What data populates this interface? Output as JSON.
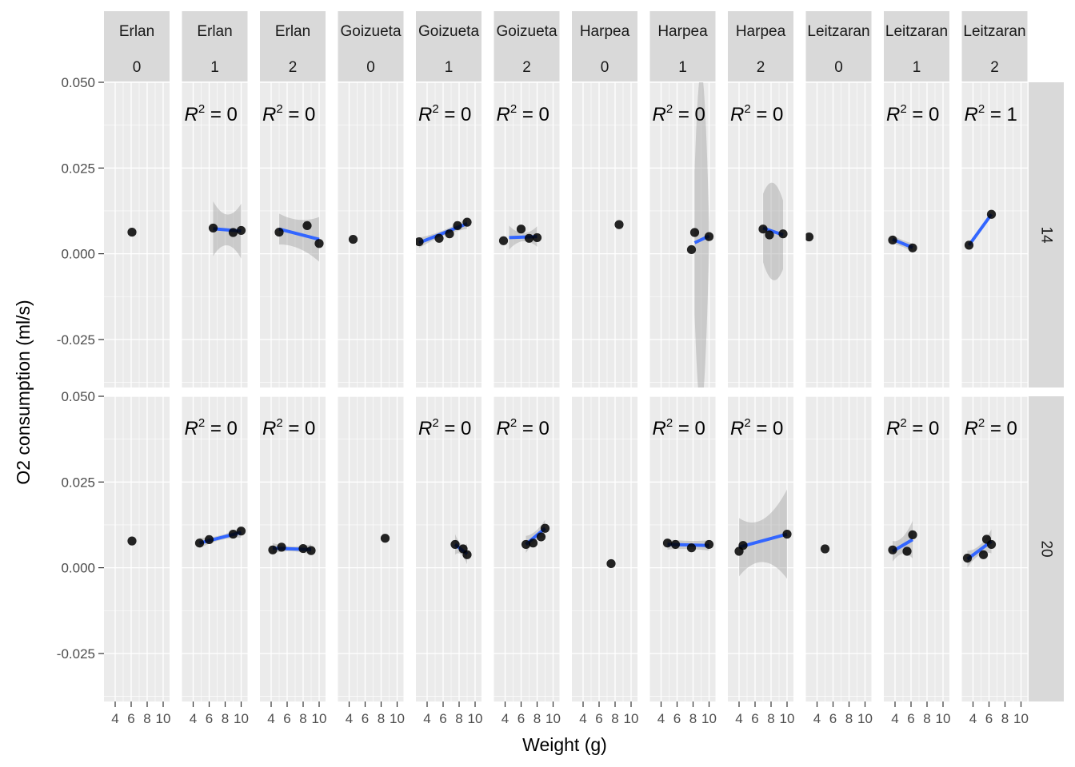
{
  "chart_data": {
    "type": "scatter",
    "xlabel": "Weight (g)",
    "ylabel": "O2 consumption (ml/s)",
    "x_ticks": [
      4,
      6,
      8,
      10
    ],
    "x_tick_labels": [
      "4",
      "6",
      "8",
      "10"
    ],
    "xlim": [
      2.6,
      10.8
    ],
    "y_ticks": [
      -0.025,
      0.0,
      0.025,
      0.05
    ],
    "y_tick_labels": [
      "-0.025",
      "0.000",
      "0.025",
      "0.050"
    ],
    "ylim": [
      -0.039,
      0.05
    ],
    "column_facets": [
      {
        "site": "Erlan",
        "level": "0"
      },
      {
        "site": "Erlan",
        "level": "1"
      },
      {
        "site": "Erlan",
        "level": "2"
      },
      {
        "site": "Goizueta",
        "level": "0"
      },
      {
        "site": "Goizueta",
        "level": "1"
      },
      {
        "site": "Goizueta",
        "level": "2"
      },
      {
        "site": "Harpea",
        "level": "0"
      },
      {
        "site": "Harpea",
        "level": "1"
      },
      {
        "site": "Harpea",
        "level": "2"
      },
      {
        "site": "Leitzaran",
        "level": "0"
      },
      {
        "site": "Leitzaran",
        "level": "1"
      },
      {
        "site": "Leitzaran",
        "level": "2"
      }
    ],
    "row_facets": [
      "14",
      "20"
    ],
    "colors": {
      "points": "#000000",
      "fit_line": "#3366FF",
      "ribbon": "#999999",
      "panel": "#EBEBEB",
      "strip": "#D9D9D9",
      "grid": "#FFFFFF"
    },
    "panels": [
      {
        "row": 0,
        "col": 0,
        "r2": "",
        "points": [
          [
            6.1,
            0.0063
          ]
        ],
        "fit": null
      },
      {
        "row": 0,
        "col": 1,
        "r2": "R² = 0",
        "points": [
          [
            6.5,
            0.0075
          ],
          [
            9.0,
            0.0062
          ],
          [
            10.0,
            0.0068
          ]
        ],
        "fit": {
          "x": [
            6.5,
            10.0
          ],
          "y": [
            0.0073,
            0.0066
          ],
          "se": [
            [
              6.5,
              0.008
            ],
            [
              8.3,
              0.0045
            ],
            [
              10.0,
              0.008
            ]
          ]
        }
      },
      {
        "row": 0,
        "col": 2,
        "r2": "R² = 0",
        "points": [
          [
            5.0,
            0.0063
          ],
          [
            8.5,
            0.0082
          ],
          [
            10.0,
            0.003
          ]
        ],
        "fit": {
          "x": [
            5.0,
            10.0
          ],
          "y": [
            0.0072,
            0.0042
          ],
          "se": [
            [
              5.0,
              0.0045
            ],
            [
              7.5,
              0.0042
            ],
            [
              10.0,
              0.0065
            ]
          ]
        }
      },
      {
        "row": 0,
        "col": 3,
        "r2": "",
        "points": [
          [
            4.5,
            0.0042
          ]
        ],
        "fit": null
      },
      {
        "row": 0,
        "col": 4,
        "r2": "R² = 0",
        "points": [
          [
            3.0,
            0.0035
          ],
          [
            5.5,
            0.0045
          ],
          [
            6.8,
            0.0058
          ],
          [
            7.8,
            0.0082
          ],
          [
            9.0,
            0.0092
          ]
        ],
        "fit": {
          "x": [
            3.0,
            9.0
          ],
          "y": [
            0.0032,
            0.0088
          ],
          "se": [
            [
              3.0,
              0.0015
            ],
            [
              6.0,
              0.0008
            ],
            [
              9.0,
              0.0015
            ]
          ]
        }
      },
      {
        "row": 0,
        "col": 5,
        "r2": "R² = 0",
        "points": [
          [
            3.8,
            0.0038
          ],
          [
            6.0,
            0.0072
          ],
          [
            7.0,
            0.0045
          ],
          [
            8.0,
            0.0047
          ]
        ],
        "fit": {
          "x": [
            4.5,
            8.0
          ],
          "y": [
            0.0047,
            0.005
          ],
          "se": [
            [
              4.5,
              0.0035
            ],
            [
              6.2,
              0.0012
            ],
            [
              8.0,
              0.003
            ]
          ]
        }
      },
      {
        "row": 0,
        "col": 6,
        "r2": "",
        "points": [
          [
            8.5,
            0.0085
          ]
        ],
        "fit": null
      },
      {
        "row": 0,
        "col": 7,
        "r2": "R² = 0",
        "points": [
          [
            7.8,
            0.0012
          ],
          [
            8.2,
            0.0062
          ],
          [
            10.0,
            0.005
          ]
        ],
        "fit": {
          "x": [
            8.2,
            10.0
          ],
          "y": [
            0.0032,
            0.0052
          ],
          "se": [
            [
              8.2,
              0.021
            ],
            [
              9.2,
              0.047
            ],
            [
              10.0,
              0.004
            ]
          ]
        }
      },
      {
        "row": 0,
        "col": 8,
        "r2": "R² = 0",
        "points": [
          [
            7.0,
            0.0072
          ],
          [
            7.8,
            0.0055
          ],
          [
            9.5,
            0.0058
          ]
        ],
        "fit": {
          "x": [
            7.0,
            9.5
          ],
          "y": [
            0.0075,
            0.0055
          ],
          "se": [
            [
              7.0,
              0.01
            ],
            [
              8.0,
              0.014
            ],
            [
              9.5,
              0.01
            ]
          ]
        }
      },
      {
        "row": 0,
        "col": 9,
        "r2": "",
        "points": [
          [
            3.0,
            0.0049
          ]
        ],
        "fit": null
      },
      {
        "row": 0,
        "col": 10,
        "r2": "R² = 0",
        "points": [
          [
            3.7,
            0.004
          ],
          [
            6.2,
            0.0017
          ]
        ],
        "fit": {
          "x": [
            3.7,
            6.2
          ],
          "y": [
            0.0042,
            0.0018
          ],
          "se": [
            [
              3.7,
              0.0012
            ],
            [
              5.0,
              0.001
            ],
            [
              6.2,
              0.0012
            ]
          ]
        }
      },
      {
        "row": 0,
        "col": 11,
        "r2": "R² = 1",
        "points": [
          [
            3.5,
            0.0025
          ],
          [
            6.3,
            0.0115
          ]
        ],
        "fit": {
          "x": [
            3.5,
            6.3
          ],
          "y": [
            0.0025,
            0.0115
          ],
          "se": [
            [
              3.5,
              0.0
            ],
            [
              5.0,
              0.0
            ],
            [
              6.3,
              0.0
            ]
          ]
        }
      },
      {
        "row": 1,
        "col": 0,
        "r2": "",
        "points": [
          [
            6.1,
            0.0078
          ]
        ],
        "fit": null
      },
      {
        "row": 1,
        "col": 1,
        "r2": "R² = 0",
        "points": [
          [
            4.8,
            0.0072
          ],
          [
            6.0,
            0.0082
          ],
          [
            9.0,
            0.0098
          ],
          [
            10.0,
            0.0107
          ]
        ],
        "fit": {
          "x": [
            4.8,
            10.0
          ],
          "y": [
            0.0072,
            0.0103
          ],
          "se": [
            [
              4.8,
              0.0015
            ],
            [
              7.5,
              0.0007
            ],
            [
              10.0,
              0.0015
            ]
          ]
        }
      },
      {
        "row": 1,
        "col": 2,
        "r2": "R² = 0",
        "points": [
          [
            4.2,
            0.0052
          ],
          [
            5.3,
            0.006
          ],
          [
            8.0,
            0.0056
          ],
          [
            9.0,
            0.005
          ]
        ],
        "fit": {
          "x": [
            4.2,
            9.0
          ],
          "y": [
            0.0057,
            0.0053
          ],
          "se": [
            [
              4.2,
              0.0015
            ],
            [
              6.6,
              0.0007
            ],
            [
              9.0,
              0.0015
            ]
          ]
        }
      },
      {
        "row": 1,
        "col": 3,
        "r2": "",
        "points": [
          [
            8.5,
            0.0086
          ]
        ],
        "fit": null
      },
      {
        "row": 1,
        "col": 4,
        "r2": "R² = 0",
        "points": [
          [
            7.5,
            0.0068
          ],
          [
            8.5,
            0.0055
          ],
          [
            9.0,
            0.0038
          ]
        ],
        "fit": {
          "x": [
            7.5,
            9.0
          ],
          "y": [
            0.0068,
            0.004
          ],
          "se": [
            [
              7.5,
              0.003
            ],
            [
              8.2,
              0.0015
            ],
            [
              9.0,
              0.003
            ]
          ]
        }
      },
      {
        "row": 1,
        "col": 5,
        "r2": "R² = 0",
        "points": [
          [
            6.6,
            0.0068
          ],
          [
            7.5,
            0.0072
          ],
          [
            8.5,
            0.009
          ],
          [
            9.0,
            0.0115
          ]
        ],
        "fit": {
          "x": [
            6.6,
            9.0
          ],
          "y": [
            0.0068,
            0.0115
          ],
          "se": [
            [
              6.6,
              0.0025
            ],
            [
              7.8,
              0.0015
            ],
            [
              9.0,
              0.0025
            ]
          ]
        }
      },
      {
        "row": 1,
        "col": 6,
        "r2": "",
        "points": [
          [
            7.5,
            0.0012
          ]
        ],
        "fit": null
      },
      {
        "row": 1,
        "col": 7,
        "r2": "R² = 0",
        "points": [
          [
            4.8,
            0.0072
          ],
          [
            5.8,
            0.0068
          ],
          [
            7.8,
            0.0058
          ],
          [
            10.0,
            0.0068
          ]
        ],
        "fit": {
          "x": [
            4.8,
            10.0
          ],
          "y": [
            0.0068,
            0.0065
          ],
          "se": [
            [
              4.8,
              0.0015
            ],
            [
              7.5,
              0.0012
            ],
            [
              10.0,
              0.0015
            ]
          ]
        }
      },
      {
        "row": 1,
        "col": 8,
        "r2": "R² = 0",
        "points": [
          [
            4.0,
            0.0048
          ],
          [
            4.5,
            0.0065
          ],
          [
            10.0,
            0.0098
          ]
        ],
        "fit": {
          "x": [
            4.0,
            10.0
          ],
          "y": [
            0.006,
            0.0098
          ],
          "se": [
            [
              4.0,
              0.0085
            ],
            [
              6.0,
              0.006
            ],
            [
              10.0,
              0.013
            ]
          ]
        }
      },
      {
        "row": 1,
        "col": 9,
        "r2": "",
        "points": [
          [
            5.0,
            0.0055
          ]
        ],
        "fit": null
      },
      {
        "row": 1,
        "col": 10,
        "r2": "R² = 0",
        "points": [
          [
            3.7,
            0.0052
          ],
          [
            5.5,
            0.0048
          ],
          [
            6.2,
            0.0096
          ]
        ],
        "fit": {
          "x": [
            3.7,
            6.2
          ],
          "y": [
            0.0048,
            0.0082
          ],
          "se": [
            [
              3.7,
              0.003
            ],
            [
              5.0,
              0.0025
            ],
            [
              6.2,
              0.0055
            ]
          ]
        }
      },
      {
        "row": 1,
        "col": 11,
        "r2": "R² = 0",
        "points": [
          [
            3.3,
            0.0028
          ],
          [
            5.3,
            0.0038
          ],
          [
            5.7,
            0.0083
          ],
          [
            6.3,
            0.0068
          ]
        ],
        "fit": {
          "x": [
            3.3,
            6.3
          ],
          "y": [
            0.0025,
            0.0077
          ],
          "se": [
            [
              3.3,
              0.0025
            ],
            [
              5.0,
              0.0015
            ],
            [
              6.3,
              0.0035
            ]
          ]
        }
      }
    ]
  }
}
